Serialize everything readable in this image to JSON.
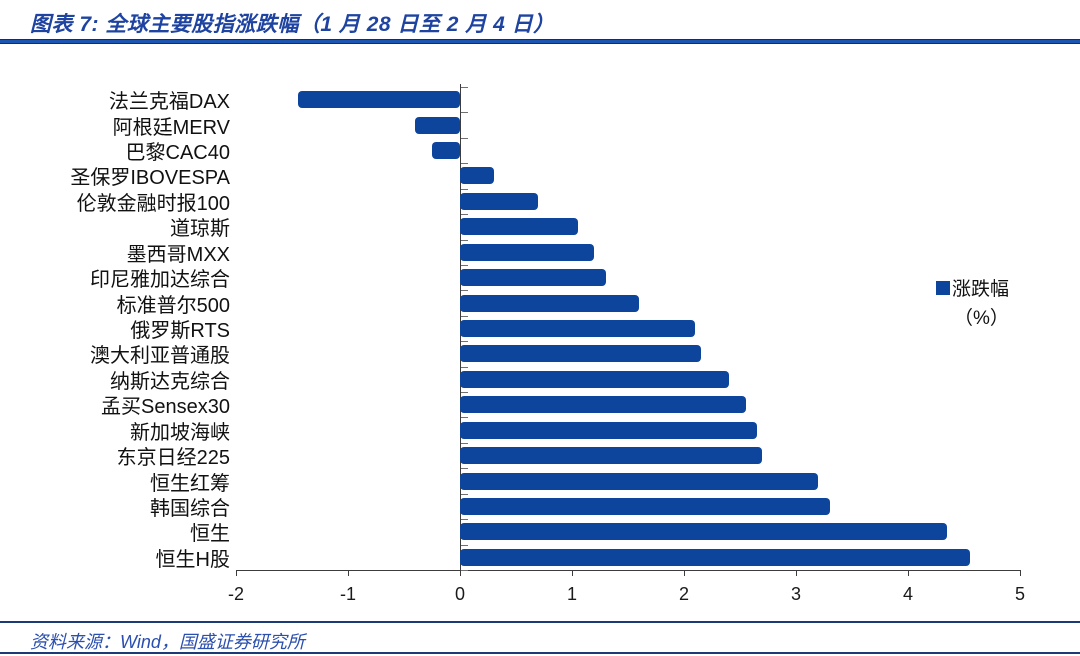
{
  "header": {
    "title": "图表 7: 全球主要股指涨跌幅（1 月 28 日至 2 月 4 日）"
  },
  "chart_data": {
    "type": "bar",
    "orientation": "horizontal",
    "title": "全球主要股指涨跌幅（1 月 28 日至 2 月 4 日）",
    "categories": [
      "法兰克福DAX",
      "阿根廷MERV",
      "巴黎CAC40",
      "圣保罗IBOVESPA",
      "伦敦金融时报100",
      "道琼斯",
      "墨西哥MXX",
      "印尼雅加达综合",
      "标准普尔500",
      "俄罗斯RTS",
      "澳大利亚普通股",
      "纳斯达克综合",
      "孟买Sensex30",
      "新加坡海峡",
      "东京日经225",
      "恒生红筹",
      "韩国综合",
      "恒生",
      "恒生H股"
    ],
    "values": [
      -1.45,
      -0.4,
      -0.25,
      0.3,
      0.7,
      1.05,
      1.2,
      1.3,
      1.6,
      2.1,
      2.15,
      2.4,
      2.55,
      2.65,
      2.7,
      3.2,
      3.3,
      4.35,
      4.55
    ],
    "xlabel": "",
    "ylabel": "",
    "xlim": [
      -2,
      5
    ],
    "xticks": [
      -2,
      -1,
      0,
      1,
      2,
      3,
      4,
      5
    ],
    "grid": false,
    "legend_position": "right",
    "legend_label": "涨跌幅",
    "legend_unit": "（%）",
    "bar_color": "#0d459c"
  },
  "footer": {
    "source": "资料来源：Wind，国盛证券研究所"
  }
}
